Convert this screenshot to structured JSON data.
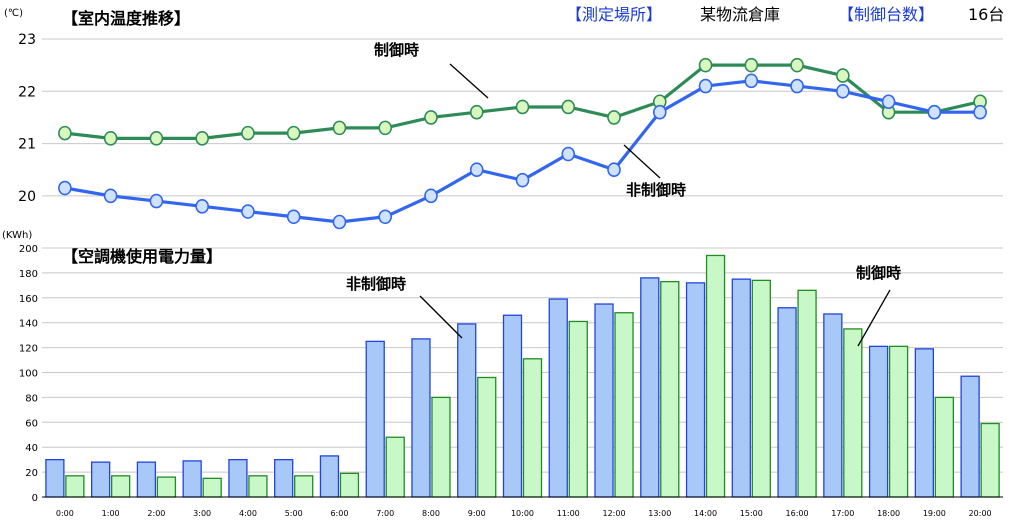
{
  "header": {
    "location_label": "【測定場所】",
    "location_value": "某物流倉庫",
    "count_label": "【制御台数】",
    "count_value": "16台"
  },
  "chart_data": [
    {
      "type": "line",
      "title": "【室内温度推移】",
      "unit": "(℃)",
      "ylim": [
        19.5,
        23
      ],
      "yticks": [
        20,
        21,
        22,
        23
      ],
      "grid": true,
      "x": [
        "0:00",
        "1:00",
        "2:00",
        "3:00",
        "4:00",
        "5:00",
        "6:00",
        "7:00",
        "8:00",
        "9:00",
        "10:00",
        "11:00",
        "12:00",
        "13:00",
        "14:00",
        "15:00",
        "16:00",
        "17:00",
        "18:00",
        "19:00",
        "20:00"
      ],
      "series": [
        {
          "name": "制御時",
          "color": "#2e8b57",
          "values": [
            21.2,
            21.1,
            21.1,
            21.1,
            21.2,
            21.2,
            21.3,
            21.3,
            21.5,
            21.6,
            21.7,
            21.7,
            21.5,
            21.8,
            22.5,
            22.5,
            22.5,
            22.3,
            21.6,
            21.6,
            21.8
          ]
        },
        {
          "name": "非制御時",
          "color": "#3366ee",
          "values": [
            20.15,
            20.0,
            19.9,
            19.8,
            19.7,
            19.6,
            19.5,
            19.6,
            20.0,
            20.5,
            20.3,
            20.8,
            20.5,
            21.6,
            22.1,
            22.2,
            22.1,
            22.0,
            21.8,
            21.6,
            21.6
          ]
        }
      ],
      "annotations": [
        {
          "text": "制御時",
          "series": "制御時"
        },
        {
          "text": "非制御時",
          "series": "非制御時"
        }
      ]
    },
    {
      "type": "bar",
      "title": "【空調機使用電力量】",
      "unit": "(KWh)",
      "ylim": [
        0,
        200
      ],
      "yticks": [
        0,
        20,
        40,
        60,
        80,
        100,
        120,
        140,
        160,
        180,
        200
      ],
      "grid": true,
      "categories": [
        "0:00",
        "1:00",
        "2:00",
        "3:00",
        "4:00",
        "5:00",
        "6:00",
        "7:00",
        "8:00",
        "9:00",
        "10:00",
        "11:00",
        "12:00",
        "13:00",
        "14:00",
        "15:00",
        "16:00",
        "17:00",
        "18:00",
        "19:00",
        "20:00"
      ],
      "series": [
        {
          "name": "非制御時",
          "color": "#a8c8f8",
          "stroke": "#2244dd",
          "values": [
            30,
            28,
            28,
            29,
            30,
            30,
            33,
            125,
            127,
            139,
            146,
            159,
            155,
            176,
            172,
            175,
            152,
            147,
            121,
            119,
            97
          ]
        },
        {
          "name": "制御時",
          "color": "#c8f8c8",
          "stroke": "#228b22",
          "values": [
            17,
            17,
            16,
            15,
            17,
            17,
            19,
            48,
            80,
            96,
            111,
            141,
            148,
            173,
            194,
            174,
            166,
            135,
            121,
            80,
            59
          ]
        }
      ],
      "annotations": [
        {
          "text": "非制御時",
          "series": "非制御時"
        },
        {
          "text": "制御時",
          "series": "制御時"
        }
      ]
    }
  ]
}
